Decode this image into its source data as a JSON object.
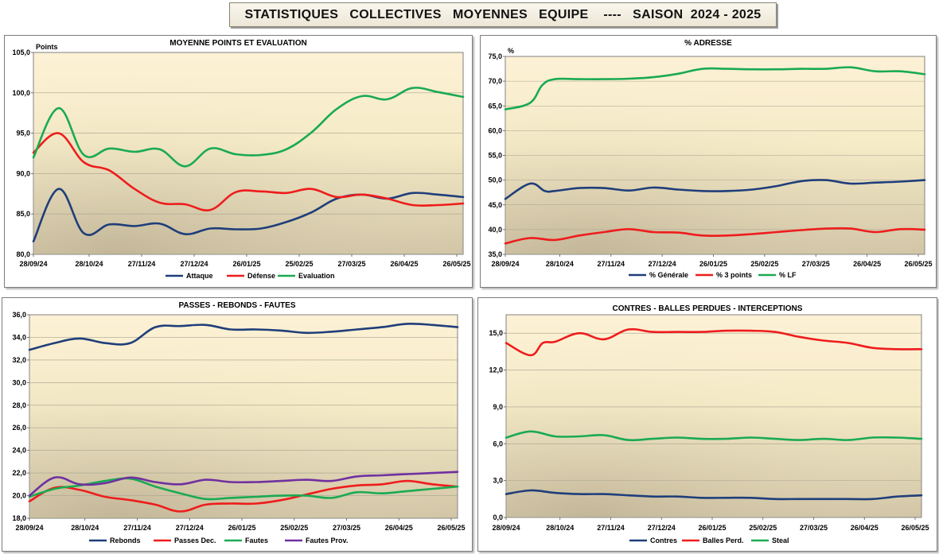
{
  "banner": {
    "title": "STATISTIQUES   COLLECTIVES   MOYENNES   EQUIPE    ----   SAISON  2024 - 2025"
  },
  "colors": {
    "blue": "#1f3e7a",
    "red": "#ee1c1c",
    "green": "#1aaa52",
    "purple": "#7030a0"
  },
  "chart_data": [
    {
      "id": "points",
      "type": "line",
      "title": "MOYENNE  POINTS  ET  EVALUATION",
      "unit_label": "Points",
      "ylim": [
        80,
        105
      ],
      "yticks": [
        "80,0",
        "85,0",
        "90,0",
        "95,0",
        "100,0",
        "105,0"
      ],
      "xlabels": [
        "28/09/24",
        "28/10/24",
        "27/11/24",
        "27/12/24",
        "26/01/25",
        "25/02/25",
        "27/03/25",
        "26/04/25",
        "26/05/25"
      ],
      "xdomain": [
        0,
        17
      ],
      "legend": "bottom",
      "series": [
        {
          "name": "Attaque",
          "color": "#1f3e7a",
          "x": [
            0,
            1,
            2,
            3,
            4,
            5,
            6,
            7,
            8,
            9,
            10,
            11,
            12,
            13,
            14,
            15,
            16,
            17
          ],
          "values": [
            81.6,
            88.1,
            82.6,
            83.7,
            83.5,
            83.8,
            82.5,
            83.2,
            83.1,
            83.2,
            84.0,
            85.2,
            86.9,
            87.4,
            86.9,
            87.6,
            87.4,
            87.1
          ]
        },
        {
          "name": "Défense",
          "color": "#ee1c1c",
          "x": [
            0,
            1,
            2,
            3,
            4,
            5,
            6,
            7,
            8,
            9,
            10,
            11,
            12,
            13,
            14,
            15,
            16,
            17
          ],
          "values": [
            92.6,
            95.0,
            91.4,
            90.4,
            88.1,
            86.4,
            86.2,
            85.5,
            87.7,
            87.8,
            87.6,
            88.1,
            87.1,
            87.4,
            86.9,
            86.1,
            86.1,
            86.3
          ]
        },
        {
          "name": "Evaluation",
          "color": "#1aaa52",
          "x": [
            0,
            1,
            2,
            3,
            4,
            5,
            6,
            7,
            8,
            9,
            10,
            11,
            12,
            13,
            14,
            15,
            16,
            17
          ],
          "values": [
            92.0,
            98.1,
            92.3,
            93.1,
            92.7,
            93.0,
            90.9,
            93.1,
            92.4,
            92.3,
            93.0,
            95.1,
            98.0,
            99.6,
            99.2,
            100.6,
            100.1,
            99.5
          ]
        }
      ]
    },
    {
      "id": "adresse",
      "type": "line",
      "title": "%  ADRESSE",
      "unit_label": "%",
      "ylim": [
        35,
        75
      ],
      "yticks": [
        "35,0",
        "40,0",
        "45,0",
        "50,0",
        "55,0",
        "60,0",
        "65,0",
        "70,0",
        "75,0"
      ],
      "xlabels": [
        "28/09/24",
        "28/10/24",
        "27/11/24",
        "27/12/24",
        "26/01/25",
        "25/02/25",
        "27/03/25",
        "26/04/25",
        "26/05/25"
      ],
      "xdomain": [
        0,
        17
      ],
      "legend": "bottom",
      "series": [
        {
          "name": "% Générale",
          "color": "#1f3e7a",
          "x": [
            0,
            1,
            1.6,
            2,
            3,
            4,
            5,
            6,
            7,
            8,
            9,
            10,
            11,
            12,
            13,
            14,
            15,
            16,
            17
          ],
          "values": [
            46.2,
            49.3,
            47.8,
            47.8,
            48.4,
            48.4,
            47.9,
            48.5,
            48.1,
            47.8,
            47.8,
            48.1,
            48.8,
            49.8,
            50.0,
            49.3,
            49.5,
            49.7,
            50.0
          ]
        },
        {
          "name": "% 3 points",
          "color": "#ee1c1c",
          "x": [
            0,
            1,
            2,
            3,
            4,
            5,
            6,
            7,
            8,
            9,
            10,
            11,
            12,
            13,
            14,
            15,
            16,
            17
          ],
          "values": [
            37.2,
            38.3,
            37.9,
            38.8,
            39.5,
            40.1,
            39.5,
            39.4,
            38.8,
            38.8,
            39.1,
            39.5,
            39.9,
            40.2,
            40.2,
            39.5,
            40.1,
            40.0
          ]
        },
        {
          "name": "% LF",
          "color": "#1aaa52",
          "x": [
            0,
            1,
            1.5,
            2,
            3,
            4,
            5,
            6,
            7,
            8,
            9,
            10,
            11,
            12,
            13,
            14,
            15,
            16,
            17
          ],
          "values": [
            64.3,
            65.6,
            69.2,
            70.4,
            70.4,
            70.4,
            70.5,
            70.8,
            71.5,
            72.5,
            72.5,
            72.4,
            72.4,
            72.5,
            72.5,
            72.8,
            72.0,
            72.0,
            71.4
          ]
        }
      ]
    },
    {
      "id": "passes",
      "type": "line",
      "title": "PASSES  -  REBONDS  -  FAUTES",
      "unit_label": "",
      "ylim": [
        18,
        36
      ],
      "yticks": [
        "18,0",
        "20,0",
        "22,0",
        "24,0",
        "26,0",
        "28,0",
        "30,0",
        "32,0",
        "34,0",
        "36,0"
      ],
      "xlabels": [
        "28/09/24",
        "28/10/24",
        "27/11/24",
        "27/12/24",
        "26/01/25",
        "25/02/25",
        "27/03/25",
        "26/04/25",
        "26/05/25"
      ],
      "xdomain": [
        0,
        17
      ],
      "legend": "bottom",
      "series": [
        {
          "name": "Rebonds",
          "color": "#1f3e7a",
          "x": [
            0,
            1,
            2,
            3,
            4,
            5,
            6,
            7,
            8,
            9,
            10,
            11,
            12,
            13,
            14,
            15,
            16,
            17
          ],
          "values": [
            32.9,
            33.5,
            33.9,
            33.5,
            33.5,
            34.9,
            35.0,
            35.1,
            34.7,
            34.7,
            34.6,
            34.4,
            34.5,
            34.7,
            34.9,
            35.2,
            35.1,
            34.9
          ]
        },
        {
          "name": "Passes Dec.",
          "color": "#ee1c1c",
          "x": [
            0,
            1,
            2,
            3,
            4,
            5,
            6,
            7,
            8,
            9,
            10,
            11,
            12,
            13,
            14,
            15,
            16,
            17
          ],
          "values": [
            19.5,
            20.7,
            20.5,
            19.9,
            19.6,
            19.2,
            18.6,
            19.2,
            19.3,
            19.3,
            19.6,
            20.1,
            20.6,
            20.9,
            21.0,
            21.3,
            21.0,
            20.8
          ]
        },
        {
          "name": "Fautes",
          "color": "#1aaa52",
          "x": [
            0,
            1,
            2,
            3,
            4,
            5,
            6,
            7,
            8,
            9,
            10,
            11,
            12,
            13,
            14,
            15,
            16,
            17
          ],
          "values": [
            19.9,
            20.6,
            20.9,
            21.3,
            21.5,
            20.8,
            20.2,
            19.7,
            19.8,
            19.9,
            20.0,
            20.0,
            19.8,
            20.3,
            20.2,
            20.4,
            20.6,
            20.8
          ]
        },
        {
          "name": "Fautes Prov.",
          "color": "#7030a0",
          "x": [
            0,
            1,
            2,
            3,
            4,
            5,
            6,
            7,
            8,
            9,
            10,
            11,
            12,
            13,
            14,
            15,
            16,
            17
          ],
          "values": [
            20.0,
            21.6,
            21.0,
            21.1,
            21.6,
            21.2,
            21.0,
            21.4,
            21.2,
            21.2,
            21.3,
            21.4,
            21.3,
            21.7,
            21.8,
            21.9,
            22.0,
            22.1
          ]
        }
      ]
    },
    {
      "id": "contres",
      "type": "line",
      "title": "CONTRES  -  BALLES PERDUES  -  INTERCEPTIONS",
      "unit_label": "",
      "ylim": [
        0,
        16.5
      ],
      "yticks": [
        "0,0",
        "3,0",
        "6,0",
        "9,0",
        "12,0",
        "15,0"
      ],
      "yticks_values": [
        0,
        3,
        6,
        9,
        12,
        15
      ],
      "xlabels": [
        "28/09/24",
        "28/10/24",
        "27/11/24",
        "27/12/24",
        "26/01/25",
        "25/02/25",
        "27/03/25",
        "26/04/25",
        "26/05/25"
      ],
      "xdomain": [
        0,
        17
      ],
      "legend": "bottom",
      "series": [
        {
          "name": "Contres",
          "color": "#1f3e7a",
          "x": [
            0,
            1,
            2,
            3,
            4,
            5,
            6,
            7,
            8,
            9,
            10,
            11,
            12,
            13,
            14,
            15,
            16,
            17
          ],
          "values": [
            1.9,
            2.2,
            2.0,
            1.9,
            1.9,
            1.8,
            1.7,
            1.7,
            1.6,
            1.6,
            1.6,
            1.5,
            1.5,
            1.5,
            1.5,
            1.5,
            1.7,
            1.8
          ]
        },
        {
          "name": "Balles Perd.",
          "color": "#ee1c1c",
          "x": [
            0,
            1,
            1.5,
            2,
            3,
            4,
            5,
            6,
            7,
            8,
            9,
            10,
            11,
            12,
            13,
            14,
            15,
            16,
            17
          ],
          "values": [
            14.2,
            13.2,
            14.2,
            14.3,
            15.0,
            14.5,
            15.3,
            15.1,
            15.1,
            15.1,
            15.2,
            15.2,
            15.1,
            14.7,
            14.4,
            14.2,
            13.8,
            13.7,
            13.7
          ]
        },
        {
          "name": "Steal",
          "color": "#1aaa52",
          "x": [
            0,
            1,
            2,
            3,
            4,
            5,
            6,
            7,
            8,
            9,
            10,
            11,
            12,
            13,
            14,
            15,
            16,
            17
          ],
          "values": [
            6.5,
            7.0,
            6.6,
            6.6,
            6.7,
            6.3,
            6.4,
            6.5,
            6.4,
            6.4,
            6.5,
            6.4,
            6.3,
            6.4,
            6.3,
            6.5,
            6.5,
            6.4
          ]
        }
      ]
    }
  ]
}
